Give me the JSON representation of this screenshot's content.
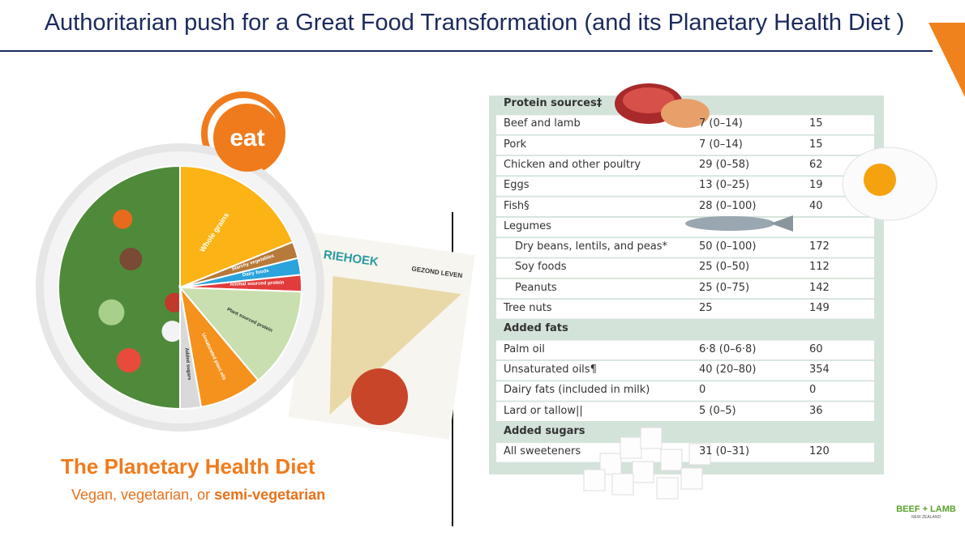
{
  "header": {
    "title": "Authoritarian push for a Great Food Transformation (and its Planetary Health Diet )"
  },
  "plate": {
    "logo": "eat",
    "segments": [
      "Whole grains",
      "Starchy vegetables",
      "Dairy foods",
      "Animal sourced protein",
      "Plant sourced protein",
      "Unsaturated plant oils",
      "Added sugars"
    ],
    "caption_title": "The Planetary Health Diet",
    "caption_subtitle": "Vegan, vegetarian, or ",
    "caption_subtitle_bold": "semi-vegetarian"
  },
  "poster": {
    "title": "RIEHOEK",
    "badge": "GEZOND LEVEN"
  },
  "table": {
    "sections": [
      {
        "heading": "Protein sources‡",
        "rows": [
          {
            "cells": [
              "Beef and lamb",
              "7 (0–14)",
              "15"
            ]
          },
          {
            "cells": [
              "Pork",
              "7 (0–14)",
              "15"
            ]
          },
          {
            "cells": [
              "Chicken and other poultry",
              "29 (0–58)",
              "62"
            ]
          },
          {
            "cells": [
              "Eggs",
              "13 (0–25)",
              "19"
            ]
          },
          {
            "cells": [
              "Fish§",
              "28 (0–100)",
              "40"
            ]
          },
          {
            "cells": [
              "Legumes"
            ]
          },
          {
            "cells": [
              "Dry beans, lentils, and peas*",
              "50 (0–100)",
              "172"
            ],
            "indent": true
          },
          {
            "cells": [
              "Soy foods",
              "25 (0–50)",
              "112"
            ],
            "indent": true
          },
          {
            "cells": [
              "Peanuts",
              "25 (0–75)",
              "142"
            ],
            "indent": true
          },
          {
            "cells": [
              "Tree nuts",
              "25",
              "149"
            ]
          }
        ]
      },
      {
        "heading": "Added fats",
        "rows": [
          {
            "cells": [
              "Palm oil",
              "6·8 (0–6·8)",
              "60"
            ]
          },
          {
            "cells": [
              "Unsaturated oils¶",
              "40 (20–80)",
              "354"
            ]
          },
          {
            "cells": [
              "Dairy fats (included in milk)",
              "0",
              "0"
            ]
          },
          {
            "cells": [
              "Lard or tallow||",
              "5 (0–5)",
              "36"
            ]
          }
        ]
      },
      {
        "heading": "Added sugars",
        "rows": [
          {
            "cells": [
              "All sweeteners",
              "31 (0–31)",
              "120"
            ]
          }
        ]
      }
    ]
  },
  "footer": {
    "brand": "BEEF + LAMB",
    "sub": "NEW ZEALAND"
  }
}
